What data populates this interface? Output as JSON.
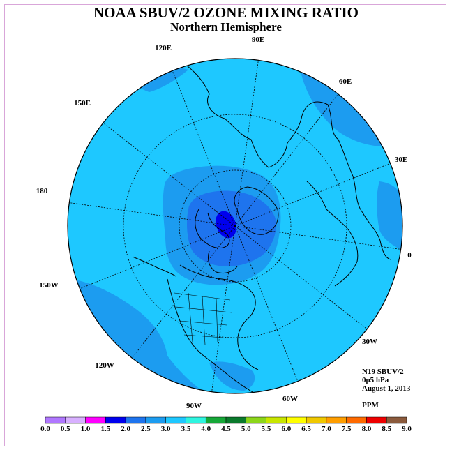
{
  "title": "NOAA SBUV/2 OZONE MIXING RATIO",
  "subtitle": "Northern Hemisphere",
  "info": {
    "instrument": "N19 SBUV/2",
    "level": "0p5 hPa",
    "date": "August 1, 2013",
    "units": "PPM"
  },
  "longitude_labels": [
    {
      "label": "90E"
    },
    {
      "label": "60E"
    },
    {
      "label": "30E"
    },
    {
      "label": "0"
    },
    {
      "label": "30W"
    },
    {
      "label": "60W"
    },
    {
      "label": "90W"
    },
    {
      "label": "120W"
    },
    {
      "label": "150W"
    },
    {
      "label": "180"
    },
    {
      "label": "150E"
    },
    {
      "label": "120E"
    }
  ],
  "colorbar": {
    "ticks": [
      "0.0",
      "0.5",
      "1.0",
      "1.5",
      "2.0",
      "2.5",
      "3.0",
      "3.5",
      "4.0",
      "4.5",
      "5.0",
      "5.5",
      "6.0",
      "6.5",
      "7.0",
      "7.5",
      "8.0",
      "8.5",
      "9.0"
    ],
    "colors": [
      "#b077ff",
      "#d8b0ff",
      "#ff00ff",
      "#0000ee",
      "#1e74ee",
      "#1c9cf0",
      "#1ec8ff",
      "#2ef5e0",
      "#16a838",
      "#0a7a2c",
      "#8cd61a",
      "#c8e600",
      "#ffff00",
      "#f0c800",
      "#ff9e00",
      "#ff6a00",
      "#ee0000",
      "#8b5a3c"
    ]
  },
  "map_colors": {
    "range_3_0_3_5": "#1ec8ff",
    "range_2_5_3_0": "#1c9cf0",
    "range_2_0_2_5": "#1e74ee",
    "range_1_5_2_0": "#0000ee"
  }
}
